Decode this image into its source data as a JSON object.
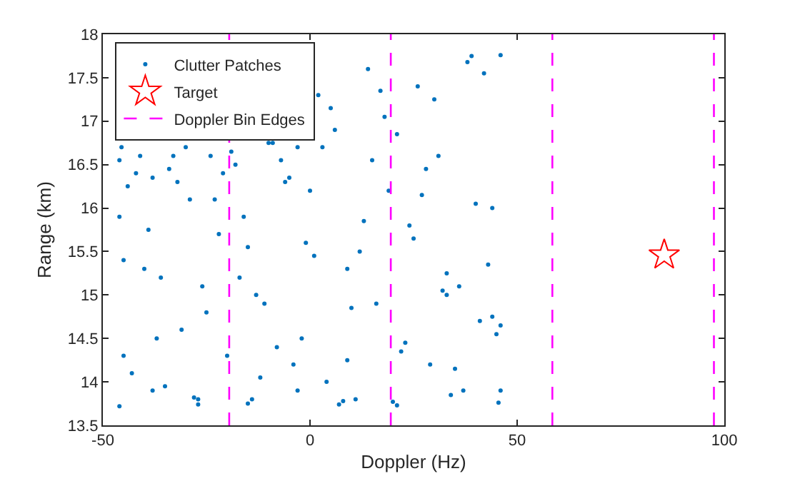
{
  "chart_data": {
    "type": "scatter",
    "xlabel": "Doppler (Hz)",
    "ylabel": "Range (km)",
    "xlim": [
      -50,
      100
    ],
    "xticks": [
      -50,
      0,
      50,
      100
    ],
    "ylim": [
      13.5,
      18
    ],
    "yticks": [
      13.5,
      14,
      14.5,
      15,
      15.5,
      16,
      16.5,
      17,
      17.5,
      18
    ],
    "grid": false,
    "legend": "top left",
    "series": [
      {
        "name": "Clutter Patches",
        "marker": "circle",
        "color": "#0072bd",
        "x": [
          -46,
          -45.5,
          -45,
          -43,
          -41,
          -38,
          -36,
          -34,
          -31,
          -29,
          -27,
          -24,
          -22,
          -20,
          -18,
          -15,
          -13,
          -10,
          -8,
          -6,
          -3,
          -1,
          2,
          4,
          6,
          9,
          11,
          14,
          16,
          19,
          21,
          24,
          26,
          29,
          31,
          34,
          36,
          39,
          41,
          44,
          45.5,
          46,
          -44,
          -40,
          -35,
          -30,
          -25,
          -21,
          -16,
          -12,
          -7,
          -2,
          3,
          8,
          12,
          17,
          22,
          27,
          32,
          37,
          42,
          45,
          -46,
          -42,
          -37,
          -32,
          -26,
          -19,
          -14,
          -9,
          -4,
          1,
          5,
          10,
          15,
          20,
          25,
          30,
          35,
          40,
          43,
          46,
          -45,
          -39,
          -33,
          -28,
          -23,
          -17,
          -11,
          -5,
          0,
          7,
          13,
          18,
          23,
          28,
          33,
          38,
          44,
          -46,
          -38,
          -27,
          -15,
          -3,
          9,
          21,
          33,
          46
        ],
        "values": [
          13.72,
          16.7,
          15.4,
          14.1,
          16.6,
          13.9,
          15.2,
          16.45,
          14.6,
          16.1,
          13.8,
          16.6,
          15.7,
          14.3,
          16.5,
          13.75,
          15.0,
          16.75,
          14.4,
          16.3,
          13.9,
          15.6,
          17.3,
          14.0,
          16.9,
          15.3,
          13.8,
          17.6,
          14.9,
          16.2,
          13.73,
          15.8,
          17.4,
          14.2,
          16.6,
          13.85,
          15.1,
          17.75,
          14.7,
          16.0,
          13.76,
          17.76,
          16.25,
          15.3,
          13.95,
          16.7,
          14.8,
          16.4,
          15.9,
          14.05,
          16.55,
          14.5,
          16.7,
          13.78,
          15.5,
          17.35,
          14.35,
          16.15,
          15.05,
          13.9,
          17.55,
          14.55,
          15.9,
          16.4,
          14.5,
          16.3,
          15.1,
          16.65,
          13.8,
          16.75,
          14.2,
          15.45,
          17.15,
          14.85,
          16.55,
          13.77,
          15.65,
          17.25,
          14.15,
          16.05,
          15.35,
          14.65,
          14.3,
          15.75,
          16.6,
          13.82,
          16.1,
          15.2,
          14.9,
          16.35,
          16.2,
          13.74,
          15.85,
          17.05,
          14.45,
          16.45,
          15.0,
          17.68,
          14.75,
          16.55,
          16.35,
          13.74,
          15.55,
          16.7,
          14.25,
          16.85,
          15.25,
          13.9
        ]
      },
      {
        "name": "Target",
        "marker": "star",
        "color": "#ff0000",
        "x": [
          85.5
        ],
        "values": [
          15.46
        ]
      },
      {
        "name": "Doppler Bin Edges",
        "type": "line",
        "line_style": "dashed",
        "marker": "none",
        "color": "#ff00ff",
        "x": [
          -19.5,
          -19.5,
          null,
          19.5,
          19.5,
          null,
          58.5,
          58.5,
          null,
          97.5,
          97.5
        ],
        "values": [
          13.5,
          18,
          null,
          13.5,
          18,
          null,
          13.5,
          18,
          null,
          13.5,
          18
        ]
      }
    ]
  }
}
